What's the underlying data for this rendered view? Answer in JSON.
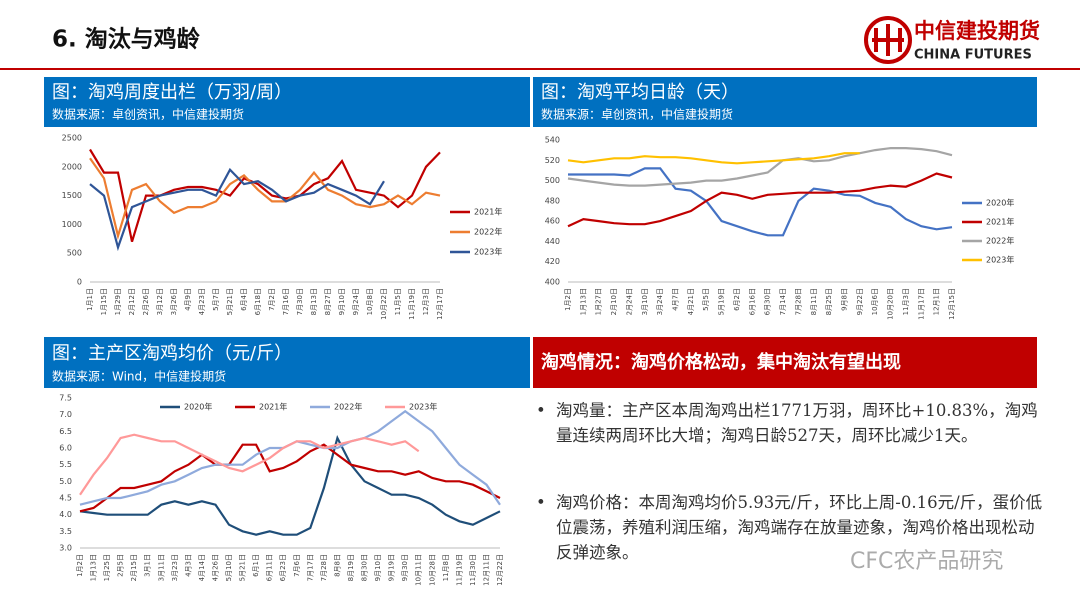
{
  "header": {
    "title": "6. 淘汰与鸡龄",
    "logo_cn": "中信建投期货",
    "logo_en": "CHINA FUTURES"
  },
  "chart_data": [
    {
      "type": "line",
      "title": "图：淘鸡周度出栏（万羽/周）",
      "source": "数据来源：卓创资讯，中信建投期货",
      "legend": "right",
      "categories": [
        "1月1日",
        "1月15日",
        "1月29日",
        "2月12日",
        "2月26日",
        "3月12日",
        "3月26日",
        "4月9日",
        "4月23日",
        "5月7日",
        "5月21日",
        "6月4日",
        "6月18日",
        "7月2日",
        "7月16日",
        "7月30日",
        "8月13日",
        "8月27日",
        "9月10日",
        "9月24日",
        "10月8日",
        "10月22日",
        "11月5日",
        "11月19日",
        "12月3日",
        "12月17日"
      ],
      "ylim": [
        0,
        2500
      ],
      "yticks": [
        0,
        500,
        1000,
        1500,
        2000,
        2500
      ],
      "series": [
        {
          "name": "2021年",
          "color": "#c00000",
          "values": [
            2300,
            1900,
            1900,
            700,
            1500,
            1500,
            1600,
            1650,
            1650,
            1600,
            1500,
            1800,
            1700,
            1500,
            1450,
            1500,
            1700,
            1800,
            2100,
            1600,
            1550,
            1500,
            1300,
            1500,
            2000,
            2250
          ]
        },
        {
          "name": "2022年",
          "color": "#ed7d31",
          "values": [
            2150,
            1800,
            800,
            1600,
            1700,
            1400,
            1200,
            1300,
            1300,
            1400,
            1700,
            1850,
            1600,
            1400,
            1400,
            1600,
            1900,
            1600,
            1500,
            1350,
            1300,
            1350,
            1500,
            1350,
            1550,
            1500
          ]
        },
        {
          "name": "2023年",
          "color": "#2f5597",
          "values": [
            1700,
            1500,
            600,
            1300,
            1400,
            1500,
            1550,
            1600,
            1600,
            1500,
            1950,
            1700,
            1750,
            1600,
            1400,
            1500,
            1550,
            1700,
            1600,
            1500,
            1350,
            1750,
            null,
            null,
            null,
            null
          ]
        }
      ]
    },
    {
      "type": "line",
      "title": "图：淘鸡平均日龄（天）",
      "source": "数据来源：卓创资讯，中信建投期货",
      "legend": "right",
      "categories": [
        "1月2日",
        "1月13日",
        "1月27日",
        "2月10日",
        "2月24日",
        "3月10日",
        "3月24日",
        "4月7日",
        "4月21日",
        "5月5日",
        "5月19日",
        "6月2日",
        "6月16日",
        "6月30日",
        "7月14日",
        "7月28日",
        "8月11日",
        "8月25日",
        "9月8日",
        "9月22日",
        "10月6日",
        "10月20日",
        "11月3日",
        "11月17日",
        "12月1日",
        "12月15日"
      ],
      "ylim": [
        400,
        540
      ],
      "yticks": [
        400,
        420,
        440,
        460,
        480,
        500,
        520,
        540
      ],
      "series": [
        {
          "name": "2020年",
          "color": "#4472c4",
          "values": [
            506,
            506,
            506,
            506,
            505,
            512,
            512,
            492,
            490,
            480,
            460,
            455,
            450,
            446,
            446,
            480,
            492,
            490,
            486,
            485,
            478,
            474,
            462,
            455,
            452,
            454
          ]
        },
        {
          "name": "2021年",
          "color": "#c00000",
          "values": [
            455,
            462,
            460,
            458,
            457,
            457,
            460,
            465,
            470,
            480,
            488,
            486,
            482,
            486,
            487,
            488,
            488,
            488,
            489,
            490,
            493,
            495,
            494,
            500,
            507,
            503
          ]
        },
        {
          "name": "2022年",
          "color": "#a5a5a5",
          "values": [
            502,
            500,
            498,
            496,
            495,
            495,
            496,
            497,
            498,
            500,
            500,
            502,
            505,
            508,
            520,
            522,
            519,
            520,
            524,
            527,
            530,
            532,
            532,
            531,
            529,
            525
          ]
        },
        {
          "name": "2023年",
          "color": "#ffc000",
          "values": [
            520,
            518,
            520,
            522,
            522,
            524,
            523,
            523,
            522,
            520,
            518,
            517,
            518,
            519,
            520,
            521,
            522,
            524,
            527,
            527,
            null,
            null,
            null,
            null,
            null,
            null
          ]
        }
      ]
    },
    {
      "type": "line",
      "title": "图：主产区淘鸡均价（元/斤）",
      "source": "数据来源：Wind，中信建投期货",
      "legend": "top",
      "categories": [
        "1月2日",
        "1月13日",
        "1月25日",
        "2月5日",
        "2月15日",
        "3月1日",
        "3月11日",
        "3月23日",
        "4月3日",
        "4月14日",
        "4月26日",
        "5月10日",
        "5月21日",
        "6月1日",
        "6月11日",
        "6月23日",
        "7月6日",
        "7月17日",
        "7月28日",
        "8月8日",
        "8月19日",
        "8月30日",
        "9月10日",
        "9月19日",
        "9月30日",
        "10月11日",
        "10月28日",
        "11月8日",
        "11月19日",
        "11月30日",
        "12月11日",
        "12月22日"
      ],
      "ylim": [
        3,
        7.5
      ],
      "yticks": [
        {
          "value": 3,
          "label": "3.0"
        },
        3.5,
        {
          "value": 4,
          "label": "4.0"
        },
        4.5,
        {
          "value": 5,
          "label": "5.0"
        },
        5.5,
        {
          "value": 6,
          "label": "6.0"
        },
        6.5,
        {
          "value": 7,
          "label": "7.0"
        },
        7.5
      ],
      "series": [
        {
          "name": "2020年",
          "color": "#1f4e79",
          "values": [
            4.1,
            4.05,
            4.0,
            4.0,
            4.0,
            4.0,
            4.3,
            4.4,
            4.3,
            4.4,
            4.3,
            3.7,
            3.5,
            3.4,
            3.5,
            3.4,
            3.4,
            3.6,
            4.8,
            6.3,
            5.5,
            5.0,
            4.8,
            4.6,
            4.6,
            4.5,
            4.3,
            4.0,
            3.8,
            3.7,
            3.9,
            4.1
          ]
        },
        {
          "name": "2021年",
          "color": "#c00000",
          "values": [
            4.1,
            4.2,
            4.5,
            4.8,
            4.8,
            4.9,
            5.0,
            5.3,
            5.5,
            5.8,
            5.5,
            5.5,
            6.1,
            6.1,
            5.3,
            5.4,
            5.6,
            5.9,
            6.1,
            5.8,
            5.5,
            5.4,
            5.3,
            5.3,
            5.2,
            5.3,
            5.1,
            5.0,
            5.0,
            4.9,
            4.7,
            4.5
          ]
        },
        {
          "name": "2022年",
          "color": "#8faadc",
          "values": [
            4.3,
            4.4,
            4.5,
            4.5,
            4.6,
            4.7,
            4.9,
            5.0,
            5.2,
            5.4,
            5.5,
            5.5,
            5.5,
            5.8,
            6.0,
            6.0,
            6.2,
            6.1,
            6.0,
            6.0,
            6.2,
            6.3,
            6.5,
            6.8,
            7.1,
            6.8,
            6.5,
            6.0,
            5.5,
            5.2,
            4.9,
            4.3
          ]
        },
        {
          "name": "2023年",
          "color": "#ff9999",
          "values": [
            4.6,
            5.2,
            5.7,
            6.3,
            6.4,
            6.3,
            6.2,
            6.2,
            6.0,
            5.8,
            5.6,
            5.4,
            5.3,
            5.5,
            5.7,
            6.0,
            6.2,
            6.2,
            6.0,
            6.1,
            6.2,
            6.3,
            6.2,
            6.1,
            6.2,
            5.9,
            null,
            null,
            null,
            null,
            null,
            null
          ]
        }
      ]
    }
  ],
  "summary": {
    "title": "淘鸡情况：淘鸡价格松动，集中淘汰有望出现",
    "bullets": [
      "淘鸡量：主产区本周淘鸡出栏1771万羽，周环比+10.83%，淘鸡量连续两周环比大增；淘鸡日龄527天，周环比减少1天。",
      "淘鸡价格：本周淘鸡均价5.93元/斤，环比上周-0.16元/斤，蛋价低位震荡，养殖利润压缩，淘鸡端存在放量迹象，淘鸡价格出现松动反弹迹象。"
    ]
  },
  "watermark": "CFC农产品研究"
}
